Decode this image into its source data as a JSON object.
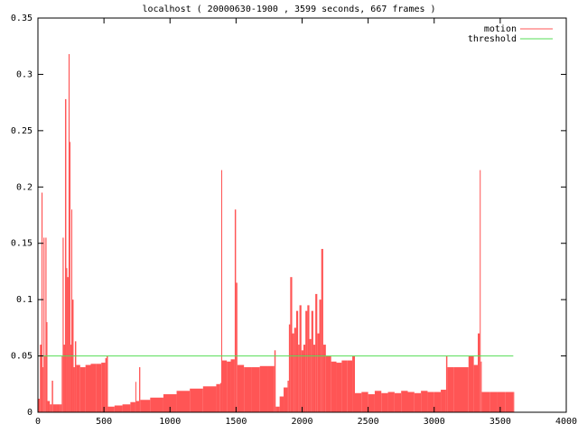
{
  "chart_data": {
    "type": "impulses",
    "title": "localhost ( 20000630-1900 , 3599 seconds, 667 frames )",
    "xlim": [
      0,
      4000
    ],
    "xticks": [
      0,
      500,
      1000,
      1500,
      2000,
      2500,
      3000,
      3500,
      4000
    ],
    "ylim": [
      0,
      0.35
    ],
    "yticks": [
      0,
      0.05,
      0.1,
      0.15,
      0.2,
      0.25,
      0.3,
      0.35
    ],
    "grid": false,
    "legend": "top-right",
    "series": [
      {
        "name": "motion",
        "color": "#ff5555",
        "style": "impulses",
        "x": [
          0,
          15,
          27,
          35,
          42,
          50,
          57,
          65,
          72,
          90,
          105,
          115,
          140,
          165,
          180,
          187,
          195,
          205,
          215,
          222,
          232,
          240,
          246,
          253,
          260,
          270,
          280,
          290,
          320,
          360,
          400,
          440,
          480,
          510,
          520,
          530,
          580,
          640,
          700,
          738,
          745,
          766,
          775,
          850,
          950,
          1050,
          1150,
          1250,
          1350,
          1380,
          1388,
          1395,
          1430,
          1460,
          1490,
          1500,
          1510,
          1560,
          1620,
          1680,
          1740,
          1790,
          1800,
          1830,
          1860,
          1890,
          1900,
          1910,
          1925,
          1940,
          1955,
          1970,
          1980,
          1995,
          2010,
          2025,
          2040,
          2055,
          2070,
          2085,
          2100,
          2115,
          2130,
          2145,
          2160,
          2180,
          2220,
          2260,
          2300,
          2340,
          2380,
          2400,
          2450,
          2500,
          2550,
          2600,
          2650,
          2700,
          2750,
          2800,
          2850,
          2900,
          2950,
          3000,
          3050,
          3090,
          3100,
          3150,
          3200,
          3260,
          3300,
          3330,
          3345,
          3352,
          3360,
          3420,
          3480,
          3540,
          3599
        ],
        "values": [
          0.012,
          0.06,
          0.195,
          0.04,
          0.155,
          0.05,
          0.155,
          0.08,
          0.01,
          0.007,
          0.028,
          0.007,
          0.007,
          0.007,
          0.05,
          0.155,
          0.06,
          0.278,
          0.128,
          0.12,
          0.318,
          0.24,
          0.06,
          0.18,
          0.1,
          0.04,
          0.063,
          0.042,
          0.04,
          0.042,
          0.043,
          0.043,
          0.044,
          0.048,
          0.05,
          0.005,
          0.006,
          0.007,
          0.009,
          0.027,
          0.01,
          0.04,
          0.011,
          0.013,
          0.016,
          0.019,
          0.021,
          0.023,
          0.025,
          0.026,
          0.215,
          0.046,
          0.045,
          0.047,
          0.18,
          0.115,
          0.042,
          0.04,
          0.04,
          0.041,
          0.041,
          0.055,
          0.005,
          0.014,
          0.022,
          0.028,
          0.078,
          0.12,
          0.07,
          0.075,
          0.09,
          0.06,
          0.095,
          0.055,
          0.06,
          0.09,
          0.095,
          0.065,
          0.09,
          0.06,
          0.105,
          0.07,
          0.1,
          0.145,
          0.06,
          0.05,
          0.045,
          0.044,
          0.046,
          0.046,
          0.05,
          0.017,
          0.018,
          0.016,
          0.019,
          0.017,
          0.018,
          0.017,
          0.019,
          0.018,
          0.017,
          0.019,
          0.018,
          0.018,
          0.02,
          0.05,
          0.04,
          0.04,
          0.04,
          0.05,
          0.042,
          0.07,
          0.215,
          0.045,
          0.018,
          0.018,
          0.018,
          0.018,
          0.018
        ]
      },
      {
        "name": "threshold",
        "color": "#55dd55",
        "style": "lines",
        "x": [
          0,
          3599
        ],
        "values": [
          0.05,
          0.05
        ]
      }
    ]
  }
}
